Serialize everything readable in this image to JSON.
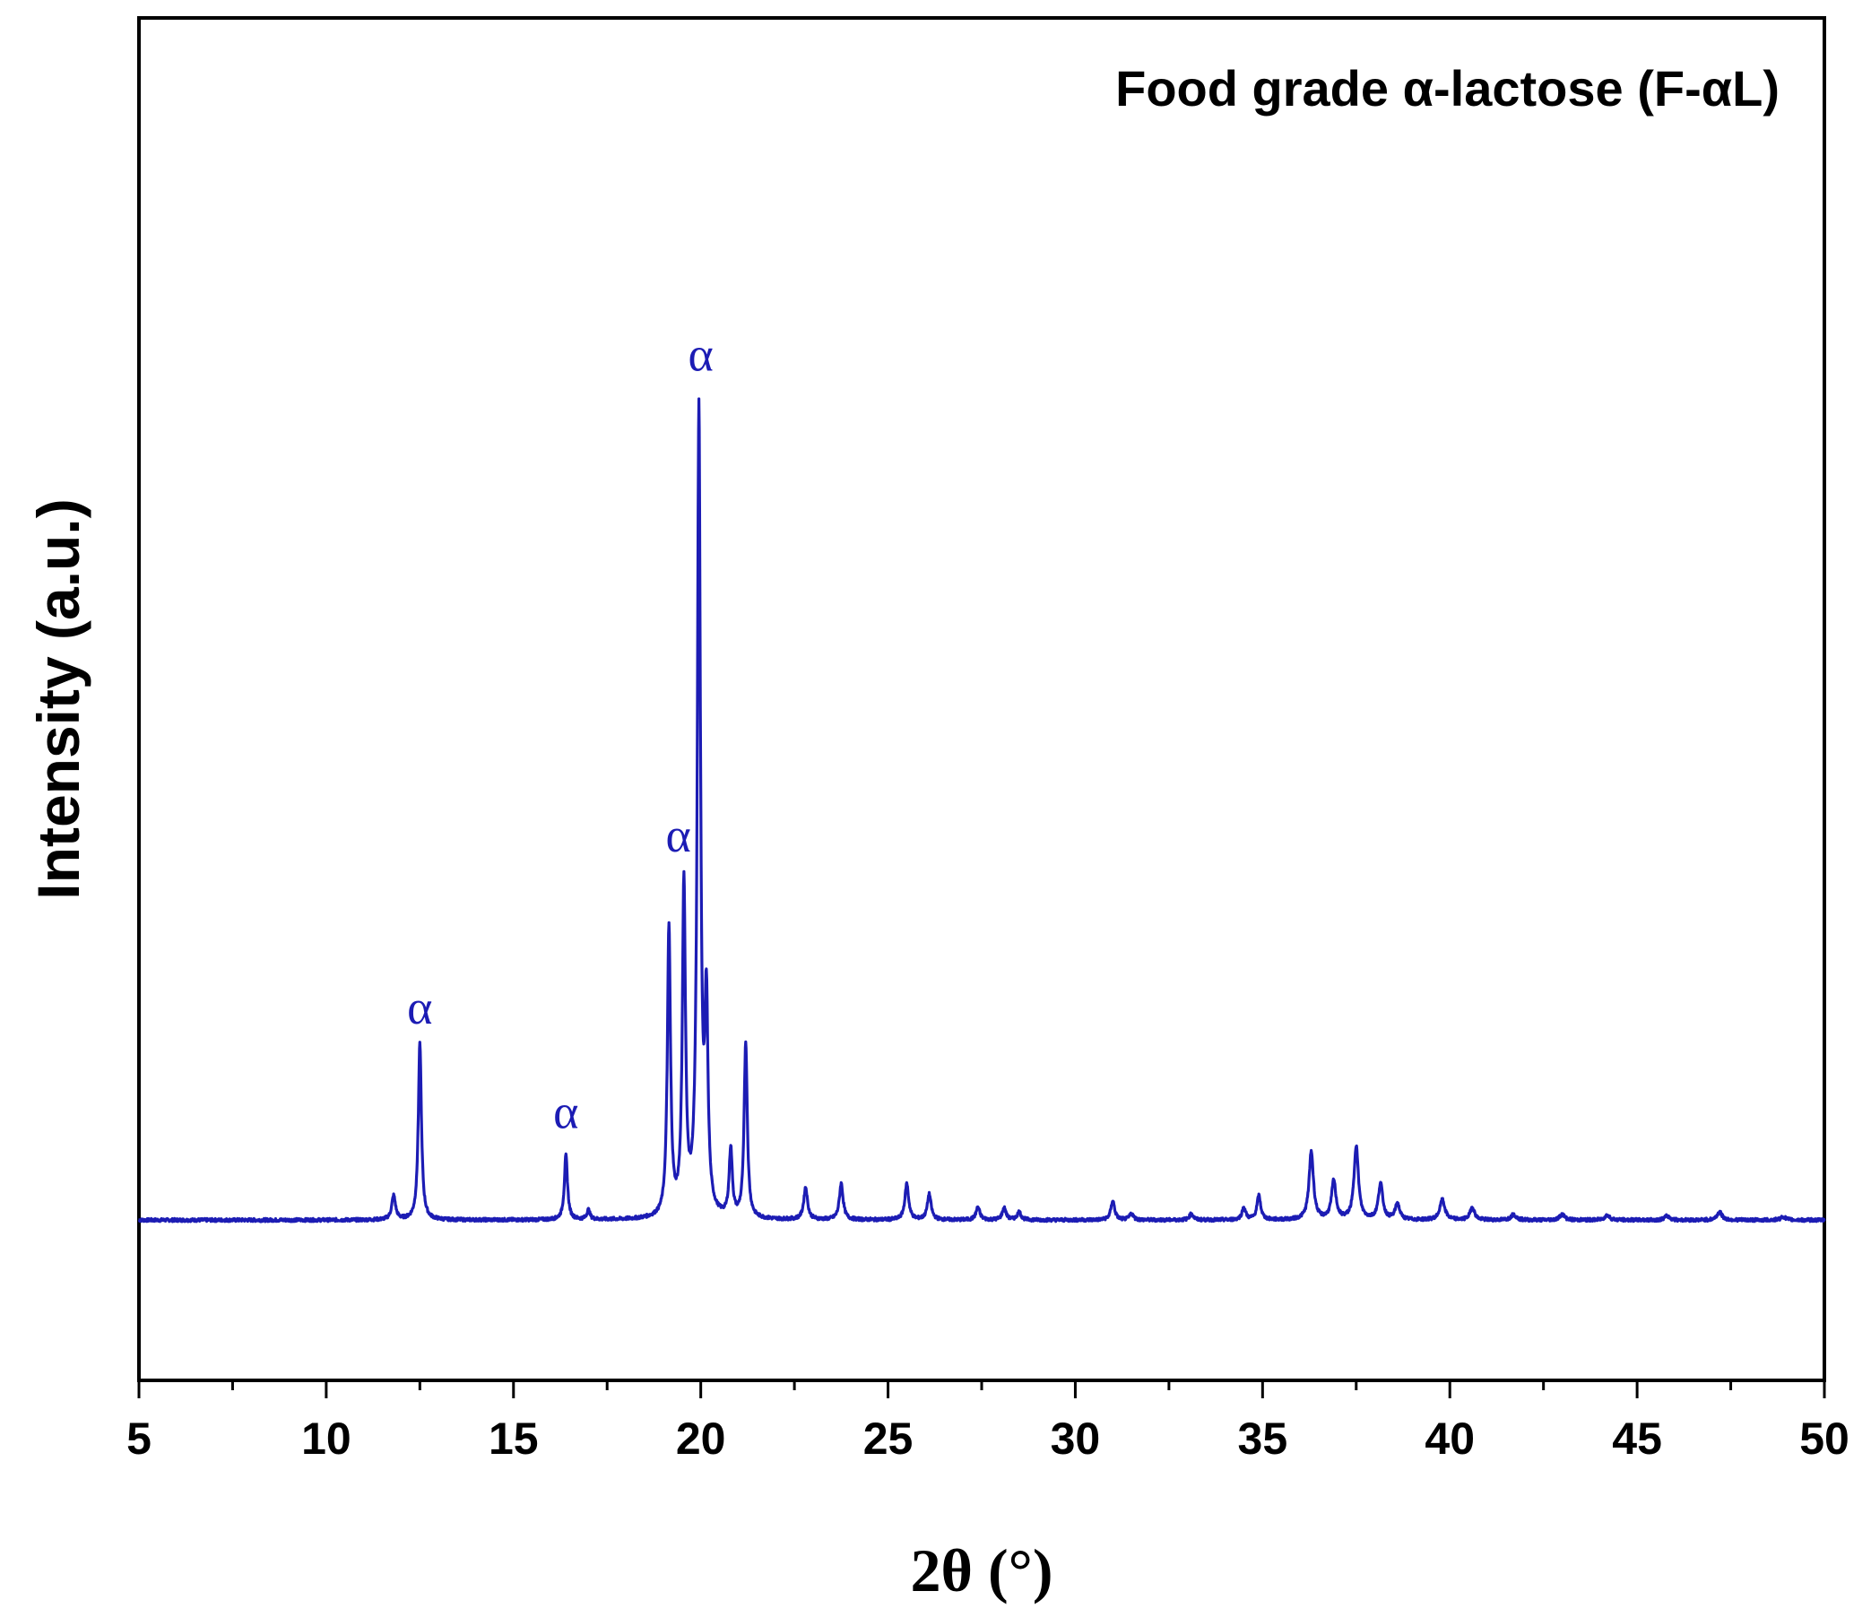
{
  "chart_data": {
    "type": "line",
    "title": "Food grade α-lactose (F-αL)",
    "xlabel": "2θ (°)",
    "ylabel": "Intensity (a.u.)",
    "xlim": [
      5,
      50
    ],
    "ylim": [
      -0.2,
      1.5
    ],
    "x_ticks": [
      "5",
      "10",
      "15",
      "20",
      "25",
      "30",
      "35",
      "40",
      "45",
      "50"
    ],
    "grid": false,
    "legend": "none",
    "series": [
      {
        "color": "#1c1cb4",
        "baseline": 0.0,
        "peaks": [
          [
            11.8,
            0.03,
            0.06
          ],
          [
            12.5,
            0.22,
            0.05
          ],
          [
            16.4,
            0.08,
            0.05
          ],
          [
            17.0,
            0.012,
            0.05
          ],
          [
            19.15,
            0.36,
            0.05
          ],
          [
            19.55,
            0.41,
            0.05
          ],
          [
            19.95,
            1.0,
            0.05
          ],
          [
            20.15,
            0.25,
            0.05
          ],
          [
            20.8,
            0.085,
            0.05
          ],
          [
            21.2,
            0.22,
            0.05
          ],
          [
            22.8,
            0.04,
            0.06
          ],
          [
            23.75,
            0.045,
            0.06
          ],
          [
            25.5,
            0.045,
            0.06
          ],
          [
            26.1,
            0.032,
            0.06
          ],
          [
            27.4,
            0.016,
            0.06
          ],
          [
            28.1,
            0.015,
            0.06
          ],
          [
            28.5,
            0.01,
            0.06
          ],
          [
            31.0,
            0.024,
            0.06
          ],
          [
            31.5,
            0.008,
            0.06
          ],
          [
            33.1,
            0.008,
            0.06
          ],
          [
            34.5,
            0.015,
            0.06
          ],
          [
            34.9,
            0.03,
            0.06
          ],
          [
            36.3,
            0.085,
            0.07
          ],
          [
            36.9,
            0.048,
            0.07
          ],
          [
            37.5,
            0.092,
            0.07
          ],
          [
            38.15,
            0.045,
            0.07
          ],
          [
            38.6,
            0.02,
            0.07
          ],
          [
            39.8,
            0.025,
            0.08
          ],
          [
            40.6,
            0.016,
            0.07
          ],
          [
            41.7,
            0.007,
            0.08
          ],
          [
            43.0,
            0.007,
            0.08
          ],
          [
            44.2,
            0.006,
            0.08
          ],
          [
            45.8,
            0.005,
            0.08
          ],
          [
            47.2,
            0.01,
            0.08
          ],
          [
            48.9,
            0.004,
            0.08
          ]
        ]
      }
    ],
    "annotations": [
      {
        "text": "α",
        "x": 12.5,
        "y": 0.245
      },
      {
        "text": "α",
        "x": 16.4,
        "y": 0.115
      },
      {
        "text": "α",
        "x": 19.4,
        "y": 0.46
      },
      {
        "text": "α",
        "x": 20.0,
        "y": 1.06
      }
    ]
  }
}
